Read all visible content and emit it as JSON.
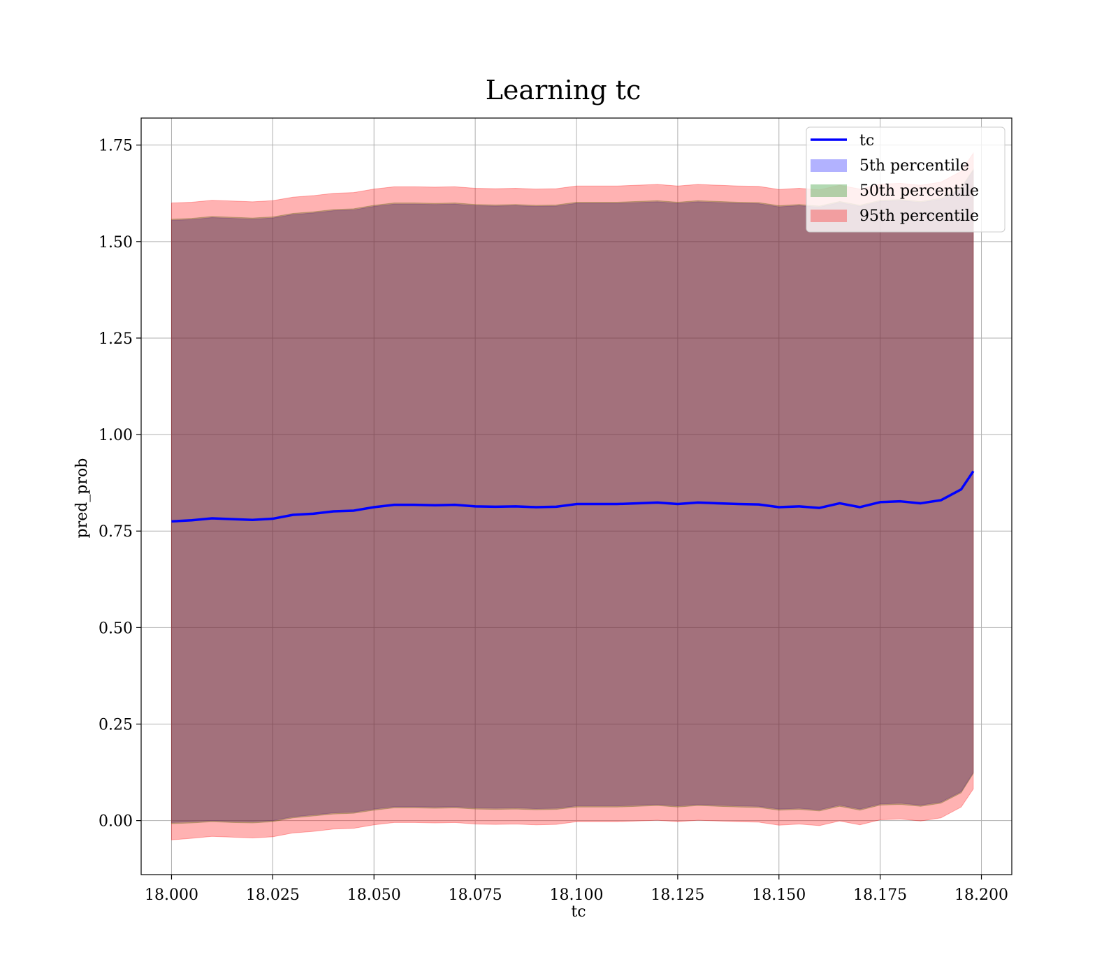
{
  "chart_data": {
    "type": "line",
    "title": "Learning tc",
    "xlabel": "tc",
    "ylabel": "pred_prob",
    "xlim": [
      17.9925,
      18.2075
    ],
    "ylim": [
      -0.14,
      1.82
    ],
    "xticks": [
      18.0,
      18.025,
      18.05,
      18.075,
      18.1,
      18.125,
      18.15,
      18.175,
      18.2
    ],
    "xtick_labels": [
      "18.000",
      "18.025",
      "18.050",
      "18.075",
      "18.100",
      "18.125",
      "18.150",
      "18.175",
      "18.200"
    ],
    "yticks": [
      0.0,
      0.25,
      0.5,
      0.75,
      1.0,
      1.25,
      1.5,
      1.75
    ],
    "ytick_labels": [
      "0.00",
      "0.25",
      "0.50",
      "0.75",
      "1.00",
      "1.25",
      "1.50",
      "1.75"
    ],
    "grid": true,
    "legend_position": "top-right",
    "x": [
      18.0,
      18.005,
      18.01,
      18.015,
      18.02,
      18.025,
      18.03,
      18.035,
      18.04,
      18.045,
      18.05,
      18.055,
      18.06,
      18.065,
      18.07,
      18.075,
      18.08,
      18.085,
      18.09,
      18.095,
      18.1,
      18.105,
      18.11,
      18.115,
      18.12,
      18.125,
      18.13,
      18.135,
      18.14,
      18.145,
      18.15,
      18.155,
      18.16,
      18.165,
      18.17,
      18.175,
      18.18,
      18.185,
      18.19,
      18.195,
      18.198
    ],
    "series": [
      {
        "name": "tc",
        "kind": "line",
        "color": "#0000ff",
        "values": [
          0.775,
          0.778,
          0.783,
          0.781,
          0.779,
          0.782,
          0.792,
          0.795,
          0.801,
          0.803,
          0.812,
          0.818,
          0.818,
          0.817,
          0.818,
          0.814,
          0.813,
          0.814,
          0.812,
          0.813,
          0.82,
          0.82,
          0.82,
          0.822,
          0.824,
          0.82,
          0.824,
          0.822,
          0.82,
          0.819,
          0.812,
          0.814,
          0.81,
          0.822,
          0.812,
          0.825,
          0.827,
          0.822,
          0.83,
          0.858,
          0.905
        ]
      },
      {
        "name": "5th percentile",
        "kind": "band",
        "color": "#0000ff",
        "lower": [
          -0.005,
          -0.003,
          0.0,
          -0.002,
          -0.003,
          0.0,
          0.01,
          0.015,
          0.02,
          0.022,
          0.03,
          0.036,
          0.036,
          0.035,
          0.036,
          0.033,
          0.032,
          0.033,
          0.031,
          0.032,
          0.038,
          0.038,
          0.038,
          0.04,
          0.042,
          0.038,
          0.042,
          0.04,
          0.038,
          0.037,
          0.03,
          0.032,
          0.028,
          0.04,
          0.03,
          0.043,
          0.045,
          0.04,
          0.048,
          0.075,
          0.125
        ],
        "upper": [
          1.555,
          1.557,
          1.562,
          1.56,
          1.558,
          1.561,
          1.57,
          1.574,
          1.58,
          1.582,
          1.591,
          1.597,
          1.597,
          1.596,
          1.597,
          1.593,
          1.592,
          1.593,
          1.591,
          1.592,
          1.599,
          1.599,
          1.599,
          1.601,
          1.603,
          1.599,
          1.603,
          1.601,
          1.599,
          1.598,
          1.59,
          1.593,
          1.589,
          1.601,
          1.591,
          1.604,
          1.606,
          1.601,
          1.609,
          1.637,
          1.684
        ]
      },
      {
        "name": "50th percentile",
        "kind": "band",
        "color": "#008000",
        "lower": [
          -0.008,
          -0.006,
          -0.003,
          -0.005,
          -0.006,
          -0.003,
          0.007,
          0.012,
          0.017,
          0.019,
          0.027,
          0.033,
          0.033,
          0.032,
          0.033,
          0.03,
          0.029,
          0.03,
          0.028,
          0.029,
          0.035,
          0.035,
          0.035,
          0.037,
          0.039,
          0.035,
          0.039,
          0.037,
          0.035,
          0.034,
          0.027,
          0.029,
          0.025,
          0.037,
          0.027,
          0.04,
          0.042,
          0.037,
          0.045,
          0.072,
          0.122
        ],
        "upper": [
          1.558,
          1.56,
          1.565,
          1.563,
          1.561,
          1.564,
          1.573,
          1.577,
          1.583,
          1.585,
          1.594,
          1.6,
          1.6,
          1.599,
          1.6,
          1.596,
          1.595,
          1.596,
          1.594,
          1.595,
          1.602,
          1.602,
          1.602,
          1.604,
          1.606,
          1.602,
          1.606,
          1.604,
          1.602,
          1.601,
          1.593,
          1.596,
          1.592,
          1.604,
          1.594,
          1.607,
          1.609,
          1.604,
          1.612,
          1.64,
          1.687
        ]
      },
      {
        "name": "95th percentile",
        "kind": "band",
        "color": "#ff0000",
        "lower": [
          -0.05,
          -0.046,
          -0.041,
          -0.043,
          -0.045,
          -0.042,
          -0.032,
          -0.028,
          -0.022,
          -0.02,
          -0.011,
          -0.005,
          -0.005,
          -0.006,
          -0.005,
          -0.009,
          -0.01,
          -0.009,
          -0.011,
          -0.01,
          -0.003,
          -0.003,
          -0.003,
          -0.001,
          0.001,
          -0.003,
          0.001,
          -0.001,
          -0.003,
          -0.004,
          -0.012,
          -0.009,
          -0.013,
          -0.001,
          -0.011,
          0.002,
          0.004,
          -0.001,
          0.007,
          0.035,
          0.082
        ],
        "upper": [
          1.6,
          1.602,
          1.607,
          1.605,
          1.603,
          1.606,
          1.615,
          1.619,
          1.625,
          1.627,
          1.636,
          1.642,
          1.642,
          1.641,
          1.642,
          1.638,
          1.637,
          1.638,
          1.636,
          1.637,
          1.644,
          1.644,
          1.644,
          1.646,
          1.648,
          1.644,
          1.648,
          1.646,
          1.644,
          1.643,
          1.635,
          1.638,
          1.634,
          1.646,
          1.636,
          1.649,
          1.651,
          1.646,
          1.654,
          1.682,
          1.729
        ]
      }
    ]
  },
  "legend": {
    "items": [
      {
        "label": "tc",
        "kind": "line",
        "color": "#0000ff"
      },
      {
        "label": "5th percentile",
        "kind": "patch",
        "color": "#0000ff"
      },
      {
        "label": "50th percentile",
        "kind": "patch",
        "color": "#008000"
      },
      {
        "label": "95th percentile",
        "kind": "patch",
        "color": "#ff0000"
      }
    ]
  }
}
